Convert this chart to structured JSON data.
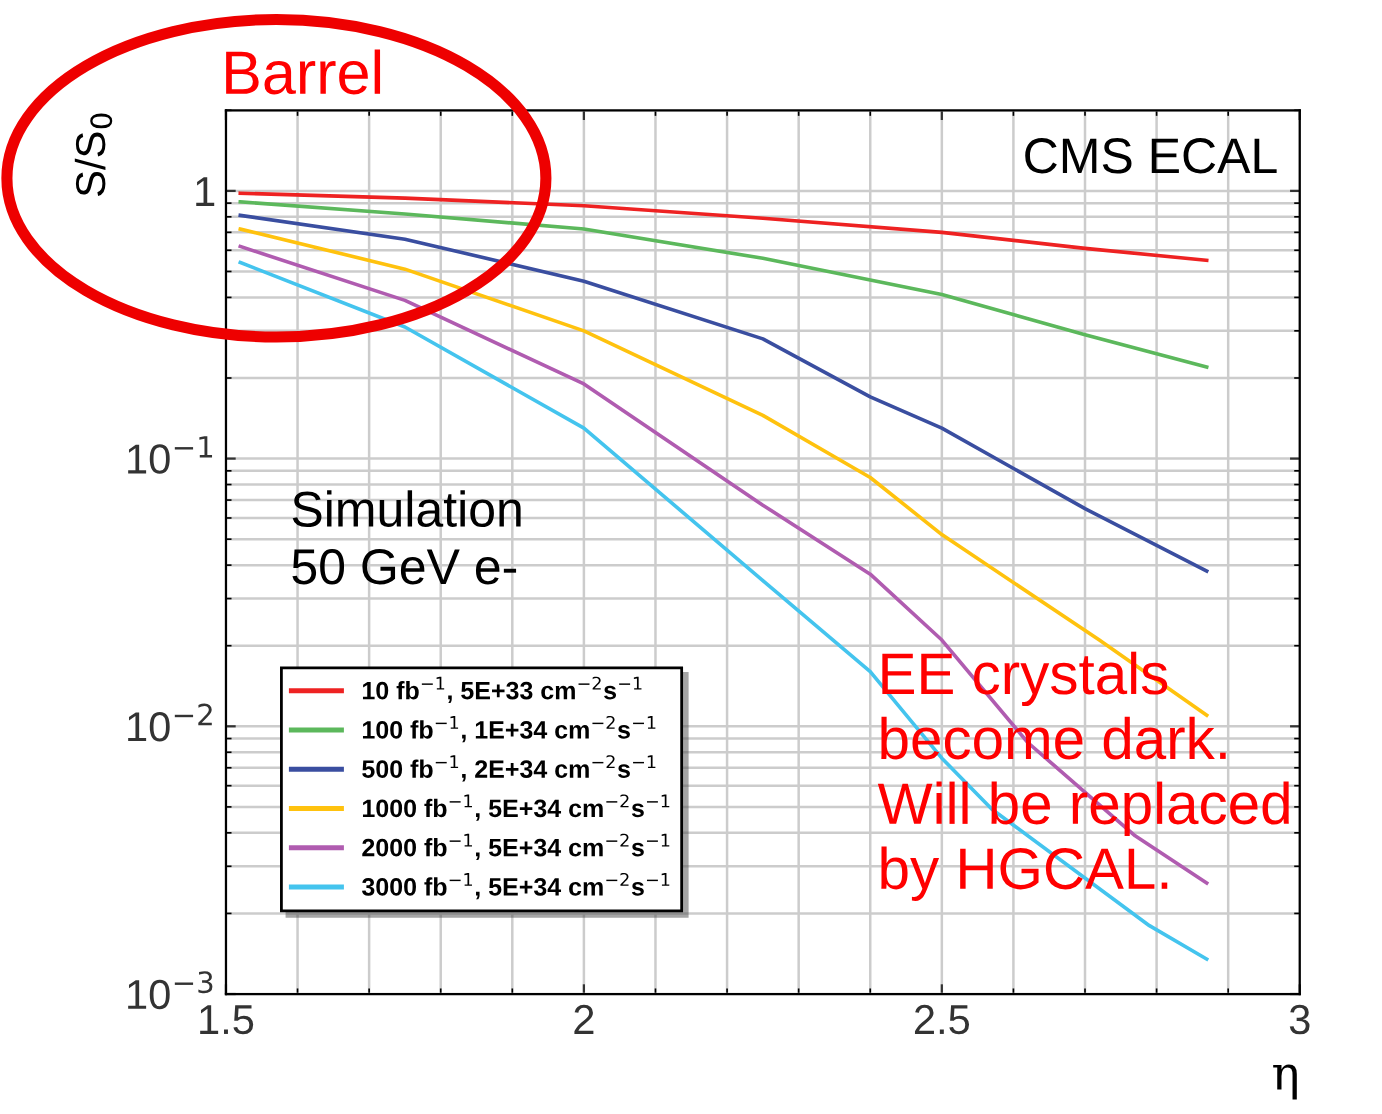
{
  "chart_data": {
    "type": "line",
    "xlabel": "η",
    "ylabel": "S/S$_{0}$",
    "log": "y",
    "xlim": [
      1.5,
      3
    ],
    "xticks": [
      1.5,
      2,
      2.5,
      3
    ],
    "ylim": [
      0.001,
      2
    ],
    "yticks": [
      {
        "value": 0.001,
        "label": "10$^{−3}$"
      },
      {
        "value": 0.01,
        "label": "10$^{−2}$"
      },
      {
        "value": 0.1,
        "label": "10$^{−1}$"
      },
      1
    ],
    "grid": true,
    "legend": "bottom left",
    "marker": "none",
    "line_style": "solid",
    "series": [
      {
        "name": "10 fb$^{−1}$, 5E+33 cm$^{−2}$s$^{−1}$",
        "color": "#ee2222",
        "x": [
          1.52,
          1.75,
          2.0,
          2.25,
          2.5,
          2.7,
          2.87
        ],
        "values": [
          0.98,
          0.94,
          0.88,
          0.79,
          0.7,
          0.61,
          0.55
        ]
      },
      {
        "name": "100 fb$^{−1}$, 1E+34 cm$^{−2}$s$^{−1}$",
        "color": "#5cb85c",
        "x": [
          1.52,
          1.75,
          2.0,
          2.25,
          2.5,
          2.7,
          2.87
        ],
        "values": [
          0.91,
          0.82,
          0.72,
          0.56,
          0.41,
          0.29,
          0.22
        ]
      },
      {
        "name": "500 fb$^{−1}$, 2E+34 cm$^{−2}$s$^{−1}$",
        "color": "#3a4ea0",
        "x": [
          1.52,
          1.75,
          2.0,
          2.25,
          2.4,
          2.5,
          2.7,
          2.87
        ],
        "values": [
          0.81,
          0.66,
          0.46,
          0.28,
          0.17,
          0.13,
          0.065,
          0.038
        ]
      },
      {
        "name": "1000 fb$^{−1}$, 5E+34 cm$^{−2}$s$^{−1}$",
        "color": "#ffc20e",
        "x": [
          1.52,
          1.75,
          2.0,
          2.25,
          2.4,
          2.5,
          2.72,
          2.87
        ],
        "values": [
          0.72,
          0.51,
          0.3,
          0.145,
          0.085,
          0.052,
          0.021,
          0.011
        ]
      },
      {
        "name": "2000 fb$^{−1}$, 5E+34 cm$^{−2}$s$^{−1}$",
        "color": "#b05cb0",
        "x": [
          1.52,
          1.75,
          2.0,
          2.25,
          2.4,
          2.5,
          2.62,
          2.77,
          2.87
        ],
        "values": [
          0.62,
          0.39,
          0.19,
          0.067,
          0.037,
          0.021,
          0.0087,
          0.0039,
          0.0026
        ]
      },
      {
        "name": "3000 fb$^{−1}$, 5E+34 cm$^{−2}$s$^{−1}$",
        "color": "#44c4ee",
        "x": [
          1.52,
          1.75,
          2.0,
          2.25,
          2.4,
          2.5,
          2.57,
          2.79,
          2.87
        ],
        "values": [
          0.54,
          0.31,
          0.13,
          0.035,
          0.016,
          0.0076,
          0.0049,
          0.0018,
          0.00135
        ]
      }
    ],
    "annotations": [
      "CMS ECAL",
      "Simulation\n50 GeV e-",
      "Barrel",
      "EE crystals\nbecome dark.\nWill be replaced\nby HGCAL."
    ]
  }
}
